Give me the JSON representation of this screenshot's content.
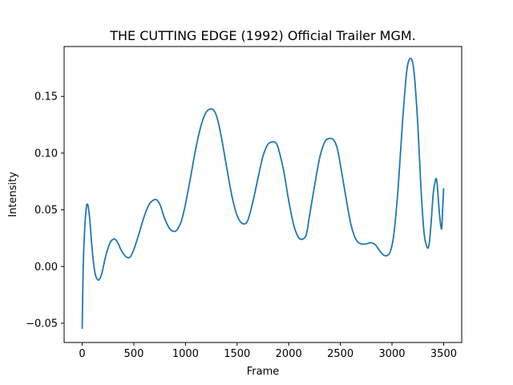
{
  "chart_data": {
    "type": "line",
    "title": "THE CUTTING EDGE (1992)  Official Trailer  MGM.",
    "xlabel": "Frame",
    "ylabel": "Intensity",
    "xlim": [
      -175,
      3675
    ],
    "ylim": [
      -0.067,
      0.194
    ],
    "xticks": [
      0,
      500,
      1000,
      1500,
      2000,
      2500,
      3000,
      3500
    ],
    "xtick_labels": [
      "0",
      "500",
      "1000",
      "1500",
      "2000",
      "2500",
      "3000",
      "3500"
    ],
    "yticks": [
      -0.05,
      0.0,
      0.05,
      0.1,
      0.15
    ],
    "ytick_labels": [
      "−0.05",
      "0.00",
      "0.05",
      "0.10",
      "0.15"
    ],
    "grid": false,
    "line_color": "#1f77b4",
    "series": [
      {
        "x": [
          0,
          10,
          25,
          40,
          50,
          60,
          75,
          90,
          110,
          130,
          160,
          190,
          230,
          270,
          300,
          320,
          350,
          380,
          420,
          460,
          500,
          550,
          600,
          650,
          700,
          730,
          760,
          800,
          850,
          900,
          930,
          960,
          1000,
          1050,
          1100,
          1150,
          1200,
          1250,
          1280,
          1310,
          1350,
          1400,
          1450,
          1500,
          1550,
          1600,
          1650,
          1700,
          1750,
          1800,
          1850,
          1875,
          1900,
          1950,
          2000,
          2050,
          2100,
          2150,
          2175,
          2200,
          2250,
          2300,
          2350,
          2400,
          2440,
          2470,
          2500,
          2550,
          2600,
          2650,
          2700,
          2750,
          2800,
          2840,
          2880,
          2920,
          2960,
          2990,
          3020,
          3060,
          3100,
          3140,
          3170,
          3200,
          3220,
          3250,
          3280,
          3310,
          3340,
          3360,
          3380,
          3400,
          3420,
          3430,
          3440,
          3460,
          3480,
          3490,
          3500
        ],
        "y": [
          -0.055,
          0.0,
          0.035,
          0.052,
          0.055,
          0.052,
          0.04,
          0.022,
          0.003,
          -0.008,
          -0.012,
          -0.006,
          0.01,
          0.021,
          0.024,
          0.024,
          0.02,
          0.014,
          0.009,
          0.008,
          0.015,
          0.029,
          0.044,
          0.055,
          0.059,
          0.058,
          0.053,
          0.042,
          0.033,
          0.031,
          0.034,
          0.04,
          0.055,
          0.079,
          0.104,
          0.124,
          0.136,
          0.139,
          0.137,
          0.13,
          0.113,
          0.087,
          0.062,
          0.045,
          0.038,
          0.04,
          0.056,
          0.077,
          0.097,
          0.108,
          0.11,
          0.109,
          0.104,
          0.085,
          0.058,
          0.036,
          0.025,
          0.025,
          0.03,
          0.044,
          0.071,
          0.096,
          0.11,
          0.113,
          0.111,
          0.104,
          0.09,
          0.063,
          0.038,
          0.024,
          0.02,
          0.02,
          0.021,
          0.019,
          0.014,
          0.01,
          0.01,
          0.015,
          0.03,
          0.07,
          0.125,
          0.17,
          0.183,
          0.18,
          0.165,
          0.125,
          0.07,
          0.03,
          0.017,
          0.02,
          0.04,
          0.065,
          0.076,
          0.077,
          0.07,
          0.046,
          0.033,
          0.05,
          0.069
        ]
      }
    ]
  }
}
